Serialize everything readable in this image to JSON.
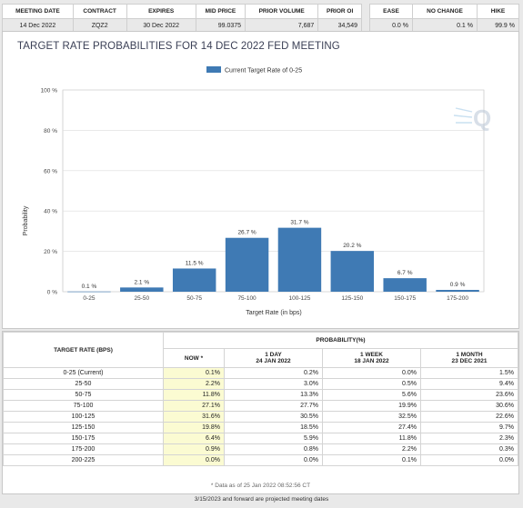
{
  "contract_table": {
    "headers": [
      "MEETING DATE",
      "CONTRACT",
      "EXPIRES",
      "MID PRICE",
      "PRIOR VOLUME",
      "PRIOR OI"
    ],
    "row": [
      "14 Dec 2022",
      "ZQZ2",
      "30 Dec 2022",
      "99.0375",
      "7,687",
      "34,549"
    ]
  },
  "summary_table": {
    "headers": [
      "EASE",
      "NO CHANGE",
      "HIKE"
    ],
    "row": [
      "0.0 %",
      "0.1 %",
      "99.9 %"
    ]
  },
  "chart_title": "TARGET RATE PROBABILITIES FOR 14 DEC 2022 FED MEETING",
  "chart_data": {
    "type": "bar",
    "title": "TARGET RATE PROBABILITIES FOR 14 DEC 2022 FED MEETING",
    "legend": "Current Target Rate of 0-25",
    "legend_position": "top-center",
    "xlabel": "Target Rate (in bps)",
    "ylabel": "Probability",
    "ylim": [
      0,
      100
    ],
    "yticks": [
      "0 %",
      "20 %",
      "40 %",
      "60 %",
      "80 %",
      "100 %"
    ],
    "ytick_values": [
      0,
      20,
      40,
      60,
      80,
      100
    ],
    "grid": true,
    "categories": [
      "0-25",
      "25-50",
      "50-75",
      "75-100",
      "100-125",
      "125-150",
      "150-175",
      "175-200"
    ],
    "values": [
      0.1,
      2.1,
      11.5,
      26.7,
      31.7,
      20.2,
      6.7,
      0.9
    ],
    "data_labels": [
      "0.1 %",
      "2.1 %",
      "11.5 %",
      "26.7 %",
      "31.7 %",
      "20.2 %",
      "6.7 %",
      "0.9 %"
    ],
    "bar_color": "#3f7ab4"
  },
  "prob_table": {
    "rate_header": "TARGET RATE (BPS)",
    "prob_header": "PROBABILITY(%)",
    "now_header": "NOW *",
    "col1_title": "1 DAY",
    "col1_date": "24 JAN 2022",
    "col2_title": "1 WEEK",
    "col2_date": "18 JAN 2022",
    "col3_title": "1 MONTH",
    "col3_date": "23 DEC 2021",
    "rows": [
      [
        "0-25 (Current)",
        "0.1%",
        "0.2%",
        "0.0%",
        "1.5%"
      ],
      [
        "25-50",
        "2.2%",
        "3.0%",
        "0.5%",
        "9.4%"
      ],
      [
        "50-75",
        "11.8%",
        "13.3%",
        "5.6%",
        "23.6%"
      ],
      [
        "75-100",
        "27.1%",
        "27.7%",
        "19.9%",
        "30.6%"
      ],
      [
        "100-125",
        "31.6%",
        "30.5%",
        "32.5%",
        "22.6%"
      ],
      [
        "125-150",
        "19.8%",
        "18.5%",
        "27.4%",
        "9.7%"
      ],
      [
        "150-175",
        "6.4%",
        "5.9%",
        "11.8%",
        "2.3%"
      ],
      [
        "175-200",
        "0.9%",
        "0.8%",
        "2.2%",
        "0.3%"
      ],
      [
        "200-225",
        "0.0%",
        "0.0%",
        "0.1%",
        "0.0%"
      ]
    ],
    "note": "* Data as of 25 Jan 2022 08:52:56 CT"
  },
  "footer_note": "3/15/2023 and forward are projected meeting dates"
}
